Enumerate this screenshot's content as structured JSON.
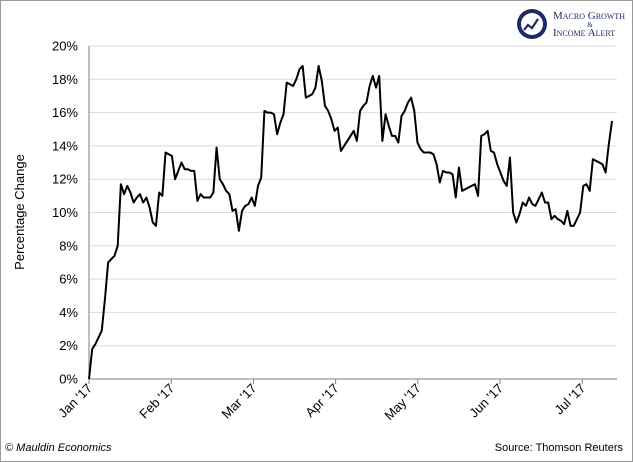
{
  "logo": {
    "line1": "Macro Growth",
    "amp": "&",
    "line2": "Income Alert",
    "color": "#1f2a6b"
  },
  "footer": {
    "left": "© Mauldin Economics",
    "right": "Source: Thomson Reuters"
  },
  "chart_data": {
    "type": "line",
    "title": "",
    "xlabel": "",
    "ylabel": "Percentage Change",
    "ylim": [
      0,
      20
    ],
    "y_ticks": [
      "0%",
      "2%",
      "4%",
      "6%",
      "8%",
      "10%",
      "12%",
      "14%",
      "16%",
      "18%",
      "20%"
    ],
    "x_ticks": [
      "Jan '17",
      "Feb '17",
      "Mar '17",
      "Apr '17",
      "May '17",
      "Jun '17",
      "Jul '17"
    ],
    "grid": "horizontal",
    "line_color": "#000000",
    "series": [
      {
        "values": [
          0.0,
          1.8,
          2.1,
          2.5,
          2.9,
          4.8,
          7.0,
          7.2,
          7.4,
          8.0,
          11.7,
          11.1,
          11.6,
          11.2,
          10.6,
          10.9,
          11.1,
          10.6,
          10.9,
          10.3,
          9.4,
          9.2,
          11.2,
          11.0,
          13.6,
          13.5,
          13.4,
          12.0,
          12.5,
          13.0,
          12.6,
          12.6,
          12.5,
          12.5,
          10.7,
          11.1,
          10.9,
          10.9,
          10.9,
          11.2,
          13.9,
          12.0,
          11.7,
          11.3,
          11.1,
          10.1,
          10.2,
          8.9,
          10.1,
          10.4,
          10.5,
          10.9,
          10.4,
          11.6,
          12.1,
          16.1,
          16.0,
          16.0,
          15.9,
          14.7,
          15.4,
          15.9,
          17.8,
          17.7,
          17.6,
          18.0,
          18.6,
          18.8,
          16.9,
          17.0,
          17.1,
          17.5,
          18.8,
          17.9,
          16.4,
          16.1,
          15.6,
          14.9,
          15.1,
          13.7,
          14.0,
          14.3,
          14.6,
          14.9,
          14.3,
          16.1,
          16.4,
          16.6,
          17.6,
          18.2,
          17.5,
          18.2,
          14.3,
          15.9,
          15.2,
          14.6,
          14.6,
          14.2,
          15.8,
          16.1,
          16.6,
          16.9,
          16.1,
          14.2,
          13.8,
          13.6,
          13.6,
          13.6,
          13.5,
          12.9,
          11.8,
          12.5,
          12.4,
          12.4,
          12.3,
          10.9,
          12.7,
          11.3,
          11.4,
          11.5,
          11.6,
          11.7,
          11.0,
          14.6,
          14.7,
          14.9,
          13.7,
          13.6,
          12.9,
          12.4,
          11.9,
          11.6,
          13.3,
          10.0,
          9.4,
          9.9,
          10.6,
          10.4,
          10.9,
          10.5,
          10.4,
          10.8,
          11.2,
          10.6,
          10.6,
          9.6,
          9.8,
          9.6,
          9.5,
          9.3,
          10.1,
          9.2,
          9.2,
          9.6,
          10.0,
          11.6,
          11.7,
          11.3,
          13.2,
          13.1,
          13.0,
          12.9,
          12.4,
          14.1,
          15.5
        ]
      }
    ]
  }
}
